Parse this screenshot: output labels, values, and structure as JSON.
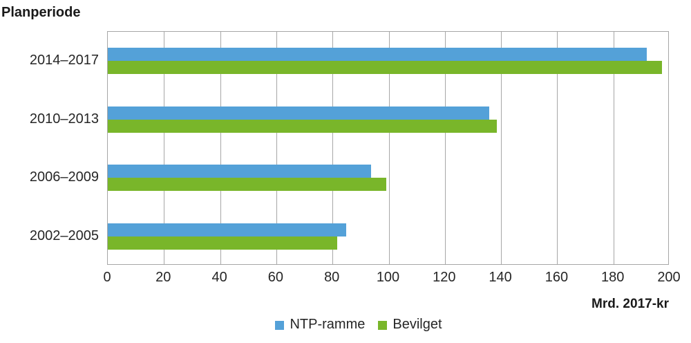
{
  "title": "Planperiode",
  "unit_label": "Mrd. 2017-kr",
  "colors": {
    "ntp_ramme_blue": "#54A1D8",
    "bevilget_green": "#79B62A",
    "gridline_gray": "#A6A6A6",
    "text": "#262626"
  },
  "chart_data": {
    "type": "bar",
    "orientation": "horizontal",
    "title": "Planperiode",
    "xlabel": "Mrd. 2017-kr",
    "ylabel": "Planperiode",
    "categories": [
      "2014–2017",
      "2010–2013",
      "2006–2009",
      "2002–2005"
    ],
    "series": [
      {
        "name": "NTP-ramme",
        "color": "#54A1D8",
        "values": [
          192.0,
          135.8,
          93.8,
          84.8
        ]
      },
      {
        "name": "Bevilget",
        "color": "#79B62A",
        "values": [
          197.4,
          138.6,
          99.2,
          81.7
        ]
      }
    ],
    "xlim": [
      0,
      200
    ],
    "xticks": [
      0,
      20,
      40,
      60,
      80,
      100,
      120,
      140,
      160,
      180,
      200
    ],
    "grid": true,
    "legend_position": "bottom"
  }
}
